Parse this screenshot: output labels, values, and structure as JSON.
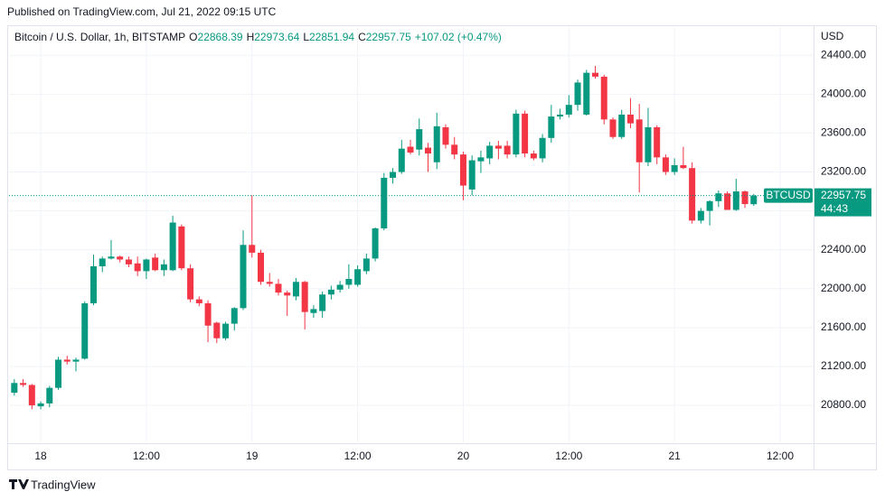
{
  "published": "Published on TradingView.com, Jul 21, 2022 09:15 UTC",
  "brand": "TradingView",
  "chart_data": {
    "type": "candlestick",
    "title": "Bitcoin / U.S. Dollar, 1h, BITSTAMP",
    "legend_letters": [
      "O",
      "H",
      "L",
      "C"
    ],
    "change_label": "+107.02 (+0.47%)",
    "currency": "USD",
    "symbol": "BTCUSD",
    "countdown": "44:43",
    "up_color": "#089981",
    "down_color": "#f23645",
    "grid": true,
    "x": [
      "2022-07-17T21:00",
      "2022-07-17T22:00",
      "2022-07-17T23:00",
      "2022-07-18T00:00",
      "2022-07-18T01:00",
      "2022-07-18T02:00",
      "2022-07-18T03:00",
      "2022-07-18T04:00",
      "2022-07-18T05:00",
      "2022-07-18T06:00",
      "2022-07-18T07:00",
      "2022-07-18T08:00",
      "2022-07-18T09:00",
      "2022-07-18T10:00",
      "2022-07-18T11:00",
      "2022-07-18T12:00",
      "2022-07-18T13:00",
      "2022-07-18T14:00",
      "2022-07-18T15:00",
      "2022-07-18T16:00",
      "2022-07-18T17:00",
      "2022-07-18T18:00",
      "2022-07-18T19:00",
      "2022-07-18T20:00",
      "2022-07-18T21:00",
      "2022-07-18T22:00",
      "2022-07-18T23:00",
      "2022-07-19T00:00",
      "2022-07-19T01:00",
      "2022-07-19T02:00",
      "2022-07-19T03:00",
      "2022-07-19T04:00",
      "2022-07-19T05:00",
      "2022-07-19T06:00",
      "2022-07-19T07:00",
      "2022-07-19T08:00",
      "2022-07-19T09:00",
      "2022-07-19T10:00",
      "2022-07-19T11:00",
      "2022-07-19T12:00",
      "2022-07-19T13:00",
      "2022-07-19T14:00",
      "2022-07-19T15:00",
      "2022-07-19T16:00",
      "2022-07-19T17:00",
      "2022-07-19T18:00",
      "2022-07-19T19:00",
      "2022-07-19T20:00",
      "2022-07-19T21:00",
      "2022-07-19T22:00",
      "2022-07-19T23:00",
      "2022-07-20T00:00",
      "2022-07-20T01:00",
      "2022-07-20T02:00",
      "2022-07-20T03:00",
      "2022-07-20T04:00",
      "2022-07-20T05:00",
      "2022-07-20T06:00",
      "2022-07-20T07:00",
      "2022-07-20T08:00",
      "2022-07-20T09:00",
      "2022-07-20T10:00",
      "2022-07-20T11:00",
      "2022-07-20T12:00",
      "2022-07-20T13:00",
      "2022-07-20T14:00",
      "2022-07-20T15:00",
      "2022-07-20T16:00",
      "2022-07-20T17:00",
      "2022-07-20T18:00",
      "2022-07-20T19:00",
      "2022-07-20T20:00",
      "2022-07-20T21:00",
      "2022-07-20T22:00",
      "2022-07-20T23:00",
      "2022-07-21T00:00",
      "2022-07-21T01:00",
      "2022-07-21T02:00",
      "2022-07-21T03:00",
      "2022-07-21T04:00",
      "2022-07-21T05:00",
      "2022-07-21T06:00",
      "2022-07-21T07:00",
      "2022-07-21T08:00",
      "2022-07-21T09:00"
    ],
    "open": [
      20930,
      21030,
      21010,
      20790,
      20820,
      20980,
      21270,
      21250,
      21280,
      21850,
      22230,
      22310,
      22330,
      22300,
      22260,
      22180,
      22320,
      22190,
      22190,
      22640,
      22210,
      21890,
      21850,
      21650,
      21490,
      21640,
      21800,
      22450,
      22370,
      22070,
      22050,
      21960,
      21920,
      22070,
      21750,
      21770,
      21940,
      21990,
      22040,
      22040,
      22180,
      22310,
      22620,
      23140,
      23200,
      23460,
      23430,
      23450,
      23300,
      23660,
      23480,
      23380,
      23020,
      23310,
      23340,
      23470,
      23470,
      23380,
      23800,
      23390,
      23340,
      23550,
      23770,
      23790,
      23890,
      23790,
      24220,
      24180,
      23740,
      23560,
      23790,
      23740,
      23300,
      23660,
      23350,
      23200,
      23270,
      23240,
      22700,
      22800,
      22900,
      22980,
      22810,
      23000,
      22868.39
    ],
    "high": [
      21070,
      21070,
      21020,
      20840,
      21000,
      21300,
      21310,
      21290,
      21870,
      22350,
      22330,
      22500,
      22340,
      22330,
      22330,
      22310,
      22360,
      22300,
      22750,
      22660,
      22250,
      21920,
      21880,
      21660,
      21660,
      21810,
      22600,
      22960,
      22400,
      22160,
      22100,
      21980,
      22110,
      22080,
      21830,
      21970,
      22030,
      22080,
      22250,
      22240,
      22360,
      22630,
      23190,
      23240,
      23530,
      23530,
      23750,
      23500,
      23810,
      23690,
      23560,
      23410,
      23370,
      23420,
      23510,
      23520,
      23520,
      23840,
      23830,
      23420,
      23590,
      23890,
      23850,
      23990,
      24150,
      24250,
      24290,
      24200,
      23760,
      23840,
      23960,
      23900,
      23860,
      23680,
      23380,
      23340,
      23460,
      23300,
      22830,
      22910,
      23010,
      23000,
      23130,
      23010,
      22973.64
    ],
    "low": [
      20900,
      20990,
      20760,
      20760,
      20780,
      20960,
      21220,
      21150,
      21270,
      21830,
      22170,
      22300,
      22270,
      22220,
      22130,
      22100,
      22180,
      22130,
      22180,
      22190,
      21860,
      21820,
      21450,
      21440,
      21470,
      21570,
      21780,
      22320,
      22040,
      22020,
      21930,
      21720,
      21880,
      21580,
      21700,
      21700,
      21890,
      21960,
      22000,
      22020,
      22150,
      22280,
      22600,
      23080,
      23180,
      23380,
      23370,
      23200,
      23230,
      23440,
      23330,
      22910,
      22960,
      23190,
      23280,
      23330,
      23340,
      23350,
      23350,
      23320,
      23300,
      23500,
      23740,
      23760,
      23830,
      23780,
      24160,
      23690,
      23540,
      23540,
      23650,
      22990,
      23260,
      23280,
      23170,
      23170,
      23230,
      22670,
      22670,
      22650,
      22840,
      22810,
      22800,
      22830,
      22851.94
    ],
    "close": [
      21030,
      21010,
      20800,
      20820,
      20980,
      21270,
      21250,
      21270,
      21850,
      22230,
      22310,
      22330,
      22300,
      22250,
      22180,
      22300,
      22190,
      22250,
      22680,
      22210,
      21890,
      21850,
      21620,
      21490,
      21640,
      21800,
      22450,
      22370,
      22070,
      22050,
      21960,
      21930,
      22070,
      21760,
      21790,
      21940,
      21990,
      22040,
      22100,
      22200,
      22310,
      22620,
      23140,
      23200,
      23440,
      23400,
      23640,
      23390,
      23670,
      23480,
      23380,
      23060,
      23320,
      23350,
      23470,
      23440,
      23380,
      23800,
      23390,
      23340,
      23550,
      23770,
      23790,
      23890,
      24120,
      24220,
      24180,
      23740,
      23560,
      23790,
      23700,
      23300,
      23660,
      23350,
      23200,
      23270,
      23240,
      22700,
      22800,
      22900,
      22980,
      22810,
      23000,
      22870,
      22957.75
    ],
    "ylim": [
      20420,
      24690
    ],
    "yticks": [
      {
        "value": 20800,
        "label": "20800.00"
      },
      {
        "value": 21200,
        "label": "21200.00"
      },
      {
        "value": 21600,
        "label": "21600.00"
      },
      {
        "value": 22000,
        "label": "22000.00"
      },
      {
        "value": 22400,
        "label": "22400.00"
      },
      {
        "value": 22800,
        "label": "22800.00"
      },
      {
        "value": 23200,
        "label": "23200.00"
      },
      {
        "value": 23600,
        "label": "23600.00"
      },
      {
        "value": 24000,
        "label": "24000.00"
      },
      {
        "value": 24400,
        "label": "24400.00"
      }
    ],
    "xlim": [
      "2022-07-17T20:24",
      "2022-07-21T15:48"
    ],
    "xticks": [
      {
        "value": "2022-07-18T00:00",
        "label": "18"
      },
      {
        "value": "2022-07-18T12:00",
        "label": "12:00"
      },
      {
        "value": "2022-07-19T00:00",
        "label": "19"
      },
      {
        "value": "2022-07-19T12:00",
        "label": "12:00"
      },
      {
        "value": "2022-07-20T00:00",
        "label": "20"
      },
      {
        "value": "2022-07-20T12:00",
        "label": "12:00"
      },
      {
        "value": "2022-07-21T00:00",
        "label": "21"
      },
      {
        "value": "2022-07-21T12:00",
        "label": "12:00"
      }
    ]
  }
}
